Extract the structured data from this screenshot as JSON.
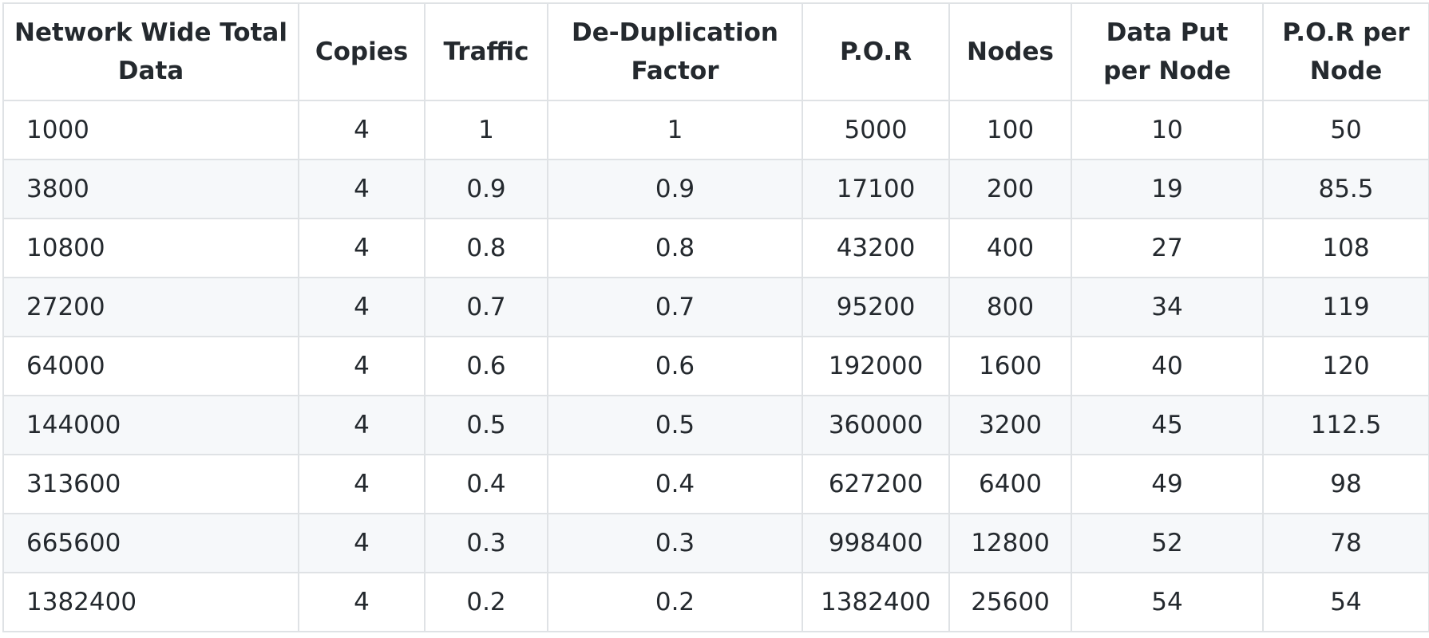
{
  "table": {
    "headers": [
      "Network Wide Total Data",
      "Copies",
      "Traffic",
      "De-Duplication Factor",
      "P.O.R",
      "Nodes",
      "Data Put per Node",
      "P.O.R per Node"
    ],
    "rows": [
      [
        "1000",
        "4",
        "1",
        "1",
        "5000",
        "100",
        "10",
        "50"
      ],
      [
        "3800",
        "4",
        "0.9",
        "0.9",
        "17100",
        "200",
        "19",
        "85.5"
      ],
      [
        "10800",
        "4",
        "0.8",
        "0.8",
        "43200",
        "400",
        "27",
        "108"
      ],
      [
        "27200",
        "4",
        "0.7",
        "0.7",
        "95200",
        "800",
        "34",
        "119"
      ],
      [
        "64000",
        "4",
        "0.6",
        "0.6",
        "192000",
        "1600",
        "40",
        "120"
      ],
      [
        "144000",
        "4",
        "0.5",
        "0.5",
        "360000",
        "3200",
        "45",
        "112.5"
      ],
      [
        "313600",
        "4",
        "0.4",
        "0.4",
        "627200",
        "6400",
        "49",
        "98"
      ],
      [
        "665600",
        "4",
        "0.3",
        "0.3",
        "998400",
        "12800",
        "52",
        "78"
      ],
      [
        "1382400",
        "4",
        "0.2",
        "0.2",
        "1382400",
        "25600",
        "54",
        "54"
      ]
    ]
  }
}
